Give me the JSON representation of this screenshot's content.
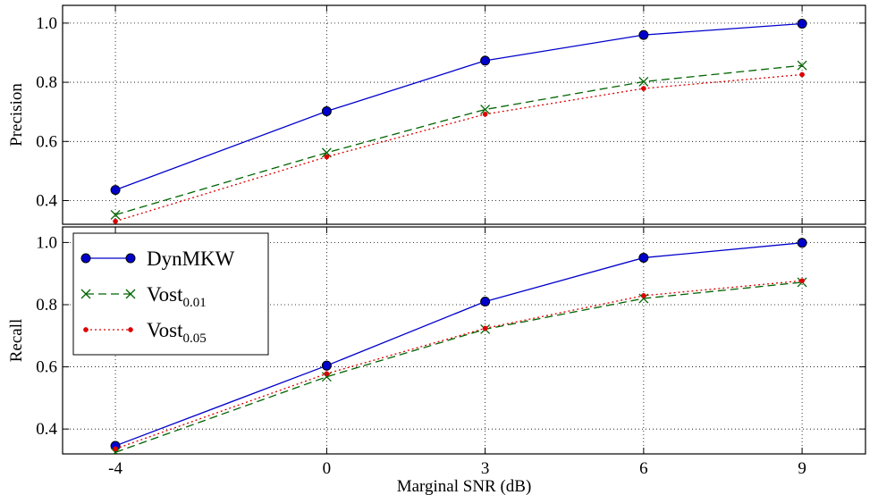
{
  "chart_data": [
    {
      "type": "line",
      "ylabel": "Precision",
      "xlabel": "",
      "x": [
        -4,
        0,
        3,
        6,
        9
      ],
      "xlim": [
        -5.0,
        10.2
      ],
      "ylim": [
        0.32,
        1.06
      ],
      "yticks": [
        "0.4",
        "0.6",
        "0.8",
        "1.0"
      ],
      "yticks_values": [
        0.4,
        0.6,
        0.8,
        1.0
      ],
      "grid": true,
      "series": [
        {
          "name": "DynMKW",
          "color": "#0000cc",
          "style": "solid",
          "marker": "circle",
          "values": [
            0.436,
            0.702,
            0.873,
            0.96,
            0.998
          ]
        },
        {
          "name": "Vost0.01",
          "color": "#006400",
          "style": "dashed",
          "marker": "x",
          "values": [
            0.352,
            0.562,
            0.708,
            0.802,
            0.857
          ]
        },
        {
          "name": "Vost0.05",
          "color": "#dd0000",
          "style": "dotted",
          "marker": "dot",
          "values": [
            0.33,
            0.548,
            0.692,
            0.779,
            0.826
          ]
        }
      ]
    },
    {
      "type": "line",
      "ylabel": "Recall",
      "xlabel": "Marginal SNR (dB)",
      "x": [
        -4,
        0,
        3,
        6,
        9
      ],
      "xticks": [
        "-4",
        "0",
        "3",
        "6",
        "9"
      ],
      "xlim": [
        -5.0,
        10.2
      ],
      "ylim": [
        0.32,
        1.05
      ],
      "yticks": [
        "0.4",
        "0.6",
        "0.8",
        "1.0"
      ],
      "yticks_values": [
        0.4,
        0.6,
        0.8,
        1.0
      ],
      "grid": true,
      "legend_position": "top-left",
      "series": [
        {
          "name": "DynMKW",
          "color": "#0000cc",
          "style": "solid",
          "marker": "circle",
          "values": [
            0.346,
            0.604,
            0.81,
            0.951,
            0.999
          ]
        },
        {
          "name": "Vost0.01",
          "color": "#006400",
          "style": "dashed",
          "marker": "x",
          "values": [
            0.325,
            0.568,
            0.721,
            0.82,
            0.872
          ]
        },
        {
          "name": "Vost0.05",
          "color": "#dd0000",
          "style": "dotted",
          "marker": "dot",
          "values": [
            0.336,
            0.578,
            0.724,
            0.829,
            0.877
          ]
        }
      ]
    }
  ],
  "legend": {
    "entries": [
      {
        "base": "DynMKW",
        "sub": ""
      },
      {
        "base": "Vost",
        "sub": "0.01"
      },
      {
        "base": "Vost",
        "sub": "0.05"
      }
    ]
  }
}
